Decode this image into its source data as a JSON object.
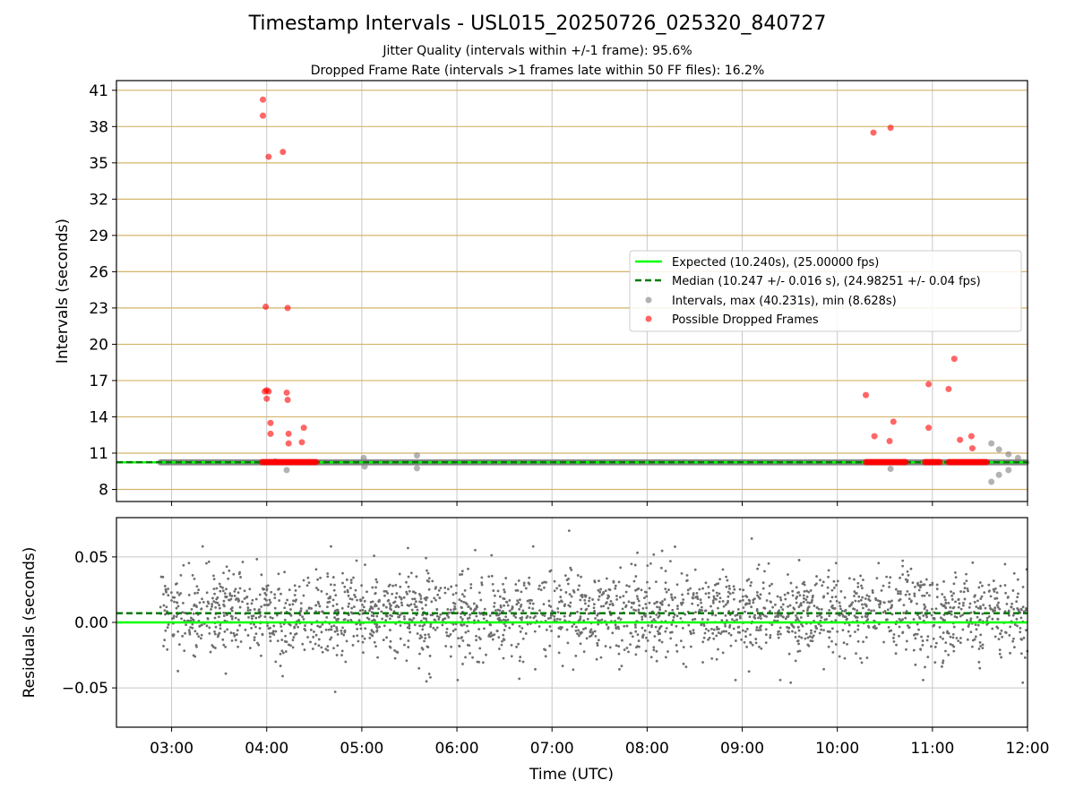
{
  "figure": {
    "title": "Timestamp Intervals - USL015_20250726_025320_840727",
    "subtitle_1": "Jitter Quality (intervals within +/-1 frame): 95.6%",
    "subtitle_2": "Dropped Frame Rate (intervals >1 frames late within 50 FF files): 16.2%"
  },
  "colors": {
    "expected": "#00ff00",
    "median": "#007a00",
    "intervals": "#808080",
    "dropped": "#ff0000",
    "grid_y_top": "#d4b46a",
    "grid": "#c8c8c8",
    "residual_points": "#6e6e6e"
  },
  "chart_data": [
    {
      "type": "scatter",
      "panel": "intervals",
      "ylabel": "Intervals (seconds)",
      "xlabel": "",
      "x_ticks": [
        "03:00",
        "04:00",
        "05:00",
        "06:00",
        "07:00",
        "08:00",
        "09:00",
        "10:00",
        "11:00",
        "12:00"
      ],
      "x_tick_hours": [
        3,
        4,
        5,
        6,
        7,
        8,
        9,
        10,
        11,
        12
      ],
      "xlim_hours": [
        2.42,
        12.0
      ],
      "ylim": [
        7.0,
        41.8
      ],
      "y_ticks": [
        8,
        11,
        14,
        17,
        20,
        23,
        26,
        29,
        32,
        35,
        38,
        41
      ],
      "grid": true,
      "legend_position": "center-right",
      "expected_interval": 10.24,
      "median_interval": 10.247,
      "legend": {
        "expected": "Expected (10.240s), (25.00000 fps)",
        "median": "Median (10.247 +/- 0.016 s), (24.98251 +/- 0.04 fps)",
        "intervals": "Intervals, max (40.231s), min (8.628s)",
        "dropped": "Possible Dropped Frames"
      },
      "intervals_baseline": {
        "x_start_hour": 2.88,
        "x_end_hour": 12.0,
        "y": 10.24
      },
      "intervals_outliers": [
        {
          "x": 4.09,
          "y": 10.3
        },
        {
          "x": 4.21,
          "y": 9.6
        },
        {
          "x": 5.02,
          "y": 10.6
        },
        {
          "x": 5.03,
          "y": 9.9
        },
        {
          "x": 5.58,
          "y": 10.8
        },
        {
          "x": 5.58,
          "y": 9.75
        },
        {
          "x": 10.56,
          "y": 9.7
        },
        {
          "x": 11.62,
          "y": 11.8
        },
        {
          "x": 11.62,
          "y": 8.63
        },
        {
          "x": 11.7,
          "y": 11.3
        },
        {
          "x": 11.7,
          "y": 9.2
        },
        {
          "x": 11.8,
          "y": 10.9
        },
        {
          "x": 11.8,
          "y": 9.6
        },
        {
          "x": 11.9,
          "y": 10.6
        }
      ],
      "dropped_frames": [
        {
          "x": 3.96,
          "y": 40.231
        },
        {
          "x": 3.96,
          "y": 38.9
        },
        {
          "x": 4.02,
          "y": 35.5
        },
        {
          "x": 4.17,
          "y": 35.9
        },
        {
          "x": 3.99,
          "y": 23.1
        },
        {
          "x": 4.22,
          "y": 23.0
        },
        {
          "x": 3.98,
          "y": 16.1
        },
        {
          "x": 4.0,
          "y": 16.2
        },
        {
          "x": 4.02,
          "y": 16.1
        },
        {
          "x": 4.0,
          "y": 15.5
        },
        {
          "x": 4.21,
          "y": 16.0
        },
        {
          "x": 4.22,
          "y": 15.4
        },
        {
          "x": 4.04,
          "y": 13.5
        },
        {
          "x": 4.04,
          "y": 12.6
        },
        {
          "x": 4.23,
          "y": 12.6
        },
        {
          "x": 4.23,
          "y": 11.8
        },
        {
          "x": 4.39,
          "y": 13.1
        },
        {
          "x": 4.37,
          "y": 11.9
        },
        {
          "x": 10.3,
          "y": 15.8
        },
        {
          "x": 10.38,
          "y": 37.5
        },
        {
          "x": 10.56,
          "y": 37.9
        },
        {
          "x": 10.39,
          "y": 12.4
        },
        {
          "x": 10.55,
          "y": 12.0
        },
        {
          "x": 10.59,
          "y": 13.6
        },
        {
          "x": 10.96,
          "y": 16.7
        },
        {
          "x": 10.96,
          "y": 13.1
        },
        {
          "x": 11.17,
          "y": 16.3
        },
        {
          "x": 11.23,
          "y": 18.8
        },
        {
          "x": 11.29,
          "y": 12.1
        },
        {
          "x": 11.41,
          "y": 12.4
        },
        {
          "x": 11.42,
          "y": 11.4
        }
      ],
      "dropped_clusters": [
        {
          "x_start_hour": 3.95,
          "x_end_hour": 4.52,
          "y": 10.26
        },
        {
          "x_start_hour": 10.3,
          "x_end_hour": 10.72,
          "y": 10.26
        },
        {
          "x_start_hour": 10.92,
          "x_end_hour": 11.08,
          "y": 10.26
        },
        {
          "x_start_hour": 11.17,
          "x_end_hour": 11.57,
          "y": 10.26
        }
      ]
    },
    {
      "type": "scatter",
      "panel": "residuals",
      "ylabel": "Residuals (seconds)",
      "xlabel": "Time (UTC)",
      "xlim_hours": [
        2.42,
        12.0
      ],
      "ylim": [
        -0.08,
        0.08
      ],
      "y_ticks": [
        0.05,
        0.0,
        -0.05
      ],
      "y_tick_labels": [
        "0.05",
        "0.00",
        "−0.05"
      ],
      "grid": true,
      "expected_residual": 0.0,
      "median_residual": 0.007,
      "residual_distribution": {
        "x_start_hour": 2.88,
        "x_end_hour": 12.0,
        "count": 2400,
        "mean": 0.007,
        "std": 0.016
      },
      "residual_extremes": [
        {
          "x": 7.18,
          "y": 0.07
        },
        {
          "x": 9.1,
          "y": 0.064
        },
        {
          "x": 4.72,
          "y": -0.053
        },
        {
          "x": 9.51,
          "y": -0.046
        },
        {
          "x": 11.95,
          "y": -0.046
        },
        {
          "x": 5.68,
          "y": -0.045
        }
      ]
    }
  ]
}
